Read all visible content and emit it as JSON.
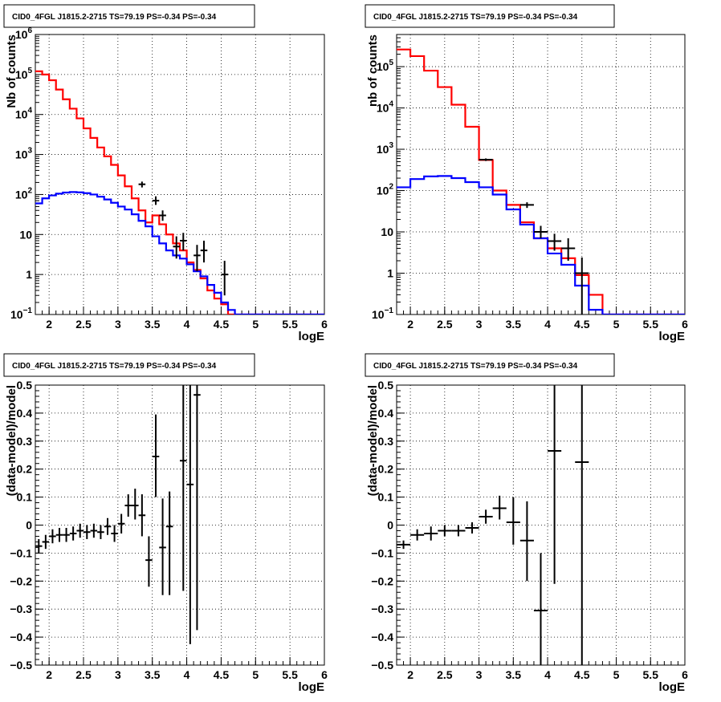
{
  "chart_data": [
    {
      "type": "line",
      "title": "CID0_4FGL J1815.2-2715 TS=79.19 PS=-0.34 PS=-0.34",
      "xlabel": "logE",
      "ylabel": "Nb of counts",
      "xlim": [
        1.8,
        6
      ],
      "ylim": [
        0.1,
        1000000
      ],
      "yscale": "log",
      "grid": true,
      "x_ticks": [
        "2",
        "2.5",
        "3",
        "3.5",
        "4",
        "4.5",
        "5",
        "5.5",
        "6"
      ],
      "y_ticks": [
        {
          "v": 0.1,
          "base": "10",
          "exp": "−1"
        },
        {
          "v": 1,
          "base": "1",
          "exp": ""
        },
        {
          "v": 10,
          "base": "10",
          "exp": ""
        },
        {
          "v": 100,
          "base": "10",
          "exp": "2"
        },
        {
          "v": 1000,
          "base": "10",
          "exp": "3"
        },
        {
          "v": 10000,
          "base": "10",
          "exp": "4"
        },
        {
          "v": 100000,
          "base": "10",
          "exp": "5"
        },
        {
          "v": 1000000,
          "base": "10",
          "exp": "6"
        }
      ],
      "series": [
        {
          "style": "step",
          "color": "#ff0000",
          "edges": [
            1.8,
            1.9,
            2.0,
            2.1,
            2.2,
            2.3,
            2.4,
            2.5,
            2.6,
            2.7,
            2.8,
            2.9,
            3.0,
            3.1,
            3.2,
            3.3,
            3.4,
            3.5,
            3.6,
            3.7,
            3.8,
            3.9,
            4.0,
            4.1,
            4.2,
            4.3,
            4.4,
            4.5,
            4.6,
            4.7,
            4.8,
            4.9,
            5.0,
            5.1,
            5.2,
            5.3,
            5.4,
            5.5,
            5.6,
            5.7,
            5.8,
            5.9,
            6.0
          ],
          "values": [
            120000,
            100000,
            72000,
            42000,
            24000,
            14000,
            8000,
            4500,
            2600,
            1500,
            900,
            550,
            300,
            160,
            80,
            40,
            20,
            30,
            18,
            10,
            6,
            4,
            2,
            1.3,
            0.8,
            0.4,
            0.25,
            0.18,
            0.1,
            0.1,
            0.1,
            0.1,
            0.1,
            0.1,
            0.1,
            0.1,
            0.1,
            0.1,
            0.1,
            0.1,
            0.1,
            0.1
          ]
        },
        {
          "style": "step",
          "color": "#0000ff",
          "edges": [
            1.8,
            1.9,
            2.0,
            2.1,
            2.2,
            2.3,
            2.4,
            2.5,
            2.6,
            2.7,
            2.8,
            2.9,
            3.0,
            3.1,
            3.2,
            3.3,
            3.4,
            3.5,
            3.6,
            3.7,
            3.8,
            3.9,
            4.0,
            4.1,
            4.2,
            4.3,
            4.4,
            4.5,
            4.6,
            4.7,
            4.8,
            4.9,
            5.0,
            5.1,
            5.2,
            5.3,
            5.4,
            5.5,
            5.6,
            5.7,
            5.8,
            5.9,
            6.0
          ],
          "values": [
            60,
            80,
            95,
            105,
            112,
            115,
            113,
            108,
            100,
            88,
            75,
            62,
            50,
            42,
            32,
            22,
            16,
            9,
            6,
            4,
            3,
            2.5,
            1.8,
            1.2,
            0.9,
            0.55,
            0.35,
            0.2,
            0.13,
            0.1,
            0.1,
            0.1,
            0.1,
            0.1,
            0.1,
            0.1,
            0.1,
            0.1,
            0.1,
            0.1,
            0.1,
            0.1
          ]
        },
        {
          "style": "errorbar",
          "color": "#000000",
          "points": [
            {
              "x": 3.35,
              "y": 180,
              "ylo": 150,
              "yhi": 210,
              "xerr": 0.05
            },
            {
              "x": 3.55,
              "y": 70,
              "ylo": 55,
              "yhi": 90,
              "xerr": 0.05
            },
            {
              "x": 3.65,
              "y": 30,
              "ylo": 22,
              "yhi": 40,
              "xerr": 0.05
            },
            {
              "x": 3.85,
              "y": 5,
              "ylo": 2.5,
              "yhi": 9,
              "xerr": 0.05
            },
            {
              "x": 3.95,
              "y": 7,
              "ylo": 4,
              "yhi": 11,
              "xerr": 0.05
            },
            {
              "x": 4.15,
              "y": 3,
              "ylo": 1.2,
              "yhi": 5.5,
              "xerr": 0.05
            },
            {
              "x": 4.25,
              "y": 4,
              "ylo": 2,
              "yhi": 7,
              "xerr": 0.05
            },
            {
              "x": 4.55,
              "y": 1,
              "ylo": 0.3,
              "yhi": 2.2,
              "xerr": 0.05
            }
          ]
        }
      ]
    },
    {
      "type": "line",
      "title": "CID0_4FGL J1815.2-2715 TS=79.19 PS=-0.34 PS=-0.34",
      "xlabel": "logE",
      "ylabel": "nb of counts",
      "xlim": [
        1.8,
        6
      ],
      "ylim": [
        0.1,
        600000
      ],
      "yscale": "log",
      "grid": true,
      "x_ticks": [
        "2",
        "2.5",
        "3",
        "3.5",
        "4",
        "4.5",
        "5",
        "5.5",
        "6"
      ],
      "y_ticks": [
        {
          "v": 0.1,
          "base": "10",
          "exp": "−1"
        },
        {
          "v": 1,
          "base": "1",
          "exp": ""
        },
        {
          "v": 10,
          "base": "10",
          "exp": ""
        },
        {
          "v": 100,
          "base": "10",
          "exp": "2"
        },
        {
          "v": 1000,
          "base": "10",
          "exp": "3"
        },
        {
          "v": 10000,
          "base": "10",
          "exp": "4"
        },
        {
          "v": 100000,
          "base": "10",
          "exp": "5"
        }
      ],
      "series": [
        {
          "style": "step",
          "color": "#ff0000",
          "edges": [
            1.8,
            2.0,
            2.2,
            2.4,
            2.6,
            2.8,
            3.0,
            3.2,
            3.4,
            3.6,
            3.8,
            4.0,
            4.2,
            4.4,
            4.6,
            4.8,
            5.0,
            5.2,
            5.4,
            5.6,
            5.8,
            6.0
          ],
          "values": [
            260000,
            180000,
            80000,
            32000,
            12000,
            3500,
            550,
            100,
            45,
            17,
            7,
            4,
            2.3,
            0.9,
            0.3,
            0.1,
            0.1,
            0.1,
            0.1,
            0.1,
            0.1
          ]
        },
        {
          "style": "step",
          "color": "#0000ff",
          "edges": [
            1.8,
            2.0,
            2.2,
            2.4,
            2.6,
            2.8,
            3.0,
            3.2,
            3.4,
            3.6,
            3.8,
            4.0,
            4.2,
            4.4,
            4.6,
            4.8,
            5.0,
            5.2,
            5.4,
            5.6,
            5.8,
            6.0
          ],
          "values": [
            120,
            190,
            220,
            225,
            200,
            160,
            120,
            80,
            35,
            15,
            7,
            3,
            1.6,
            0.5,
            0.13,
            0.1,
            0.1,
            0.1,
            0.1,
            0.1,
            0.1
          ]
        },
        {
          "style": "errorbar",
          "color": "#000000",
          "points": [
            {
              "x": 3.1,
              "y": 560,
              "ylo": 520,
              "yhi": 600,
              "xerr": 0.1
            },
            {
              "x": 3.7,
              "y": 45,
              "ylo": 38,
              "yhi": 52,
              "xerr": 0.1
            },
            {
              "x": 3.9,
              "y": 10,
              "ylo": 7,
              "yhi": 14,
              "xerr": 0.1
            },
            {
              "x": 4.1,
              "y": 6,
              "ylo": 3.5,
              "yhi": 9,
              "xerr": 0.1
            },
            {
              "x": 4.3,
              "y": 4,
              "ylo": 2,
              "yhi": 7,
              "xerr": 0.1
            },
            {
              "x": 4.5,
              "y": 1,
              "ylo": 0.1,
              "yhi": 2.4,
              "xerr": 0.1
            }
          ]
        }
      ]
    },
    {
      "type": "scatter",
      "title": "CID0_4FGL J1815.2-2715 TS=79.19 PS=-0.34 PS=-0.34",
      "xlabel": "logE",
      "ylabel": "(data-model)/model",
      "xlim": [
        1.8,
        6
      ],
      "ylim": [
        -0.5,
        0.5
      ],
      "yscale": "linear",
      "grid": true,
      "x_ticks": [
        "2",
        "2.5",
        "3",
        "3.5",
        "4",
        "4.5",
        "5",
        "5.5",
        "6"
      ],
      "y_ticks": [
        "−0.5",
        "−0.4",
        "−0.3",
        "−0.2",
        "−0.1",
        "0",
        "0.1",
        "0.2",
        "0.3",
        "0.4",
        "0.5"
      ],
      "series": [
        {
          "style": "errorbar",
          "color": "#000000",
          "points": [
            {
              "x": 1.85,
              "y": -0.075,
              "ylo": -0.1,
              "yhi": -0.05,
              "xerr": 0.05
            },
            {
              "x": 1.95,
              "y": -0.06,
              "ylo": -0.085,
              "yhi": -0.035,
              "xerr": 0.05
            },
            {
              "x": 2.05,
              "y": -0.04,
              "ylo": -0.065,
              "yhi": -0.015,
              "xerr": 0.05
            },
            {
              "x": 2.15,
              "y": -0.035,
              "ylo": -0.06,
              "yhi": -0.01,
              "xerr": 0.05
            },
            {
              "x": 2.25,
              "y": -0.035,
              "ylo": -0.06,
              "yhi": -0.01,
              "xerr": 0.05
            },
            {
              "x": 2.35,
              "y": -0.03,
              "ylo": -0.055,
              "yhi": -0.005,
              "xerr": 0.05
            },
            {
              "x": 2.45,
              "y": -0.02,
              "ylo": -0.045,
              "yhi": 0.005,
              "xerr": 0.05
            },
            {
              "x": 2.55,
              "y": -0.025,
              "ylo": -0.05,
              "yhi": 0.0,
              "xerr": 0.05
            },
            {
              "x": 2.65,
              "y": -0.02,
              "ylo": -0.045,
              "yhi": 0.005,
              "xerr": 0.05
            },
            {
              "x": 2.75,
              "y": -0.025,
              "ylo": -0.05,
              "yhi": 0.0,
              "xerr": 0.05
            },
            {
              "x": 2.85,
              "y": -0.005,
              "ylo": -0.035,
              "yhi": 0.025,
              "xerr": 0.05
            },
            {
              "x": 2.95,
              "y": -0.03,
              "ylo": -0.06,
              "yhi": 0.0,
              "xerr": 0.05
            },
            {
              "x": 3.05,
              "y": 0.005,
              "ylo": -0.03,
              "yhi": 0.04,
              "xerr": 0.05
            },
            {
              "x": 3.15,
              "y": 0.07,
              "ylo": 0.03,
              "yhi": 0.11,
              "xerr": 0.05
            },
            {
              "x": 3.25,
              "y": 0.07,
              "ylo": 0.02,
              "yhi": 0.13,
              "xerr": 0.05
            },
            {
              "x": 3.35,
              "y": 0.035,
              "ylo": -0.04,
              "yhi": 0.11,
              "xerr": 0.05
            },
            {
              "x": 3.45,
              "y": -0.125,
              "ylo": -0.22,
              "yhi": -0.04,
              "xerr": 0.05
            },
            {
              "x": 3.55,
              "y": 0.245,
              "ylo": 0.1,
              "yhi": 0.395,
              "xerr": 0.05
            },
            {
              "x": 3.65,
              "y": -0.08,
              "ylo": -0.25,
              "yhi": 0.095,
              "xerr": 0.05
            },
            {
              "x": 3.75,
              "y": -0.005,
              "ylo": -0.25,
              "yhi": 0.12,
              "xerr": 0.05
            },
            {
              "x": 3.95,
              "y": 0.23,
              "ylo": -0.235,
              "yhi": 0.5,
              "xerr": 0.05
            },
            {
              "x": 4.05,
              "y": 0.145,
              "ylo": -0.425,
              "yhi": 0.5,
              "xerr": 0.05
            },
            {
              "x": 4.15,
              "y": 0.465,
              "ylo": -0.375,
              "yhi": 0.5,
              "xerr": 0.05
            }
          ]
        }
      ]
    },
    {
      "type": "scatter",
      "title": "CID0_4FGL J1815.2-2715 TS=79.19 PS=-0.34 PS=-0.34",
      "xlabel": "logE",
      "ylabel": "(data-model)/model",
      "xlim": [
        1.8,
        6
      ],
      "ylim": [
        -0.5,
        0.5
      ],
      "yscale": "linear",
      "grid": true,
      "x_ticks": [
        "2",
        "2.5",
        "3",
        "3.5",
        "4",
        "4.5",
        "5",
        "5.5",
        "6"
      ],
      "y_ticks": [
        "−0.5",
        "−0.4",
        "−0.3",
        "−0.2",
        "−0.1",
        "0",
        "0.1",
        "0.2",
        "0.3",
        "0.4",
        "0.5"
      ],
      "series": [
        {
          "style": "errorbar",
          "color": "#000000",
          "points": [
            {
              "x": 1.9,
              "y": -0.07,
              "ylo": -0.085,
              "yhi": -0.055,
              "xerr": 0.1
            },
            {
              "x": 2.1,
              "y": -0.035,
              "ylo": -0.055,
              "yhi": -0.015,
              "xerr": 0.1
            },
            {
              "x": 2.3,
              "y": -0.03,
              "ylo": -0.055,
              "yhi": -0.005,
              "xerr": 0.1
            },
            {
              "x": 2.5,
              "y": -0.02,
              "ylo": -0.04,
              "yhi": 0.0,
              "xerr": 0.1
            },
            {
              "x": 2.7,
              "y": -0.02,
              "ylo": -0.04,
              "yhi": 0.0,
              "xerr": 0.1
            },
            {
              "x": 2.9,
              "y": -0.01,
              "ylo": -0.03,
              "yhi": 0.01,
              "xerr": 0.1
            },
            {
              "x": 3.1,
              "y": 0.03,
              "ylo": 0.005,
              "yhi": 0.055,
              "xerr": 0.1
            },
            {
              "x": 3.3,
              "y": 0.06,
              "ylo": 0.02,
              "yhi": 0.105,
              "xerr": 0.1
            },
            {
              "x": 3.5,
              "y": 0.01,
              "ylo": -0.07,
              "yhi": 0.1,
              "xerr": 0.1
            },
            {
              "x": 3.7,
              "y": -0.055,
              "ylo": -0.2,
              "yhi": 0.085,
              "xerr": 0.1
            },
            {
              "x": 3.9,
              "y": -0.305,
              "ylo": -0.5,
              "yhi": -0.1,
              "xerr": 0.1
            },
            {
              "x": 4.1,
              "y": 0.265,
              "ylo": -0.21,
              "yhi": 0.5,
              "xerr": 0.1
            },
            {
              "x": 4.5,
              "y": 0.225,
              "ylo": -0.5,
              "yhi": 0.5,
              "xerr": 0.1
            }
          ]
        }
      ]
    }
  ]
}
